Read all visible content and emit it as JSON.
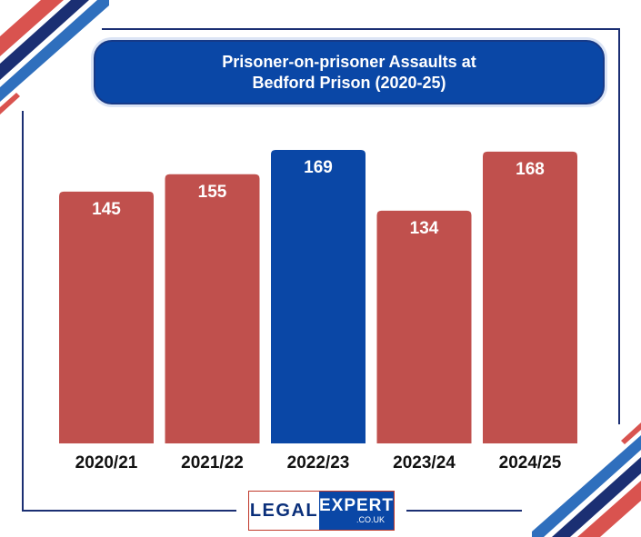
{
  "title": {
    "line1": "Prisoner-on-prisoner Assaults at",
    "line2": "Bedford Prison (2020-25)"
  },
  "logo": {
    "left": "LEGAL",
    "right": "EXPERT",
    "sub": ".CO.UK"
  },
  "colors": {
    "bar_default": "#c0504d",
    "bar_highlight": "#0a47a6",
    "accent_navy": "#1b2f73",
    "accent_red": "#d9534f",
    "accent_blue": "#2f6fbd"
  },
  "chart_data": {
    "type": "bar",
    "title": "Prisoner-on-prisoner Assaults at Bedford Prison (2020-25)",
    "categories": [
      "2020/21",
      "2021/22",
      "2022/23",
      "2023/24",
      "2024/25"
    ],
    "values": [
      145,
      155,
      169,
      134,
      168
    ],
    "highlight_index": 2,
    "data_labels": [
      "145",
      "155",
      "169",
      "134",
      "168"
    ],
    "xlabel": "",
    "ylabel": "",
    "grid": false,
    "legend": "none"
  }
}
